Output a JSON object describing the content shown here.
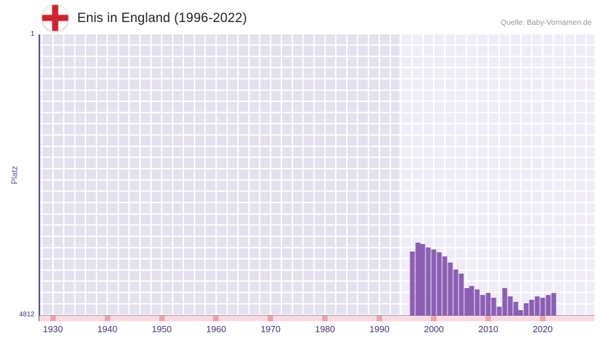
{
  "header": {
    "title": "Enis in England (1996-2022)",
    "source": "Quelle: Baby-Vornamen.de",
    "flag": "england-flag-icon"
  },
  "chart_data": {
    "type": "bar",
    "title": "Enis in England (1996-2022)",
    "xlabel": "",
    "ylabel": "Platz",
    "y_axis": {
      "top_label": "1",
      "bottom_label": "4812",
      "min": 1,
      "max": 4812,
      "inverted": true
    },
    "x_range": [
      1927.5,
      2029.5
    ],
    "x_ticks": [
      1930,
      1940,
      1950,
      1960,
      1970,
      1980,
      1990,
      2000,
      2010,
      2020
    ],
    "highlight_range": [
      1993.5,
      2029.5
    ],
    "grid": true,
    "legend": "none",
    "years": [
      1996,
      1997,
      1998,
      1999,
      2000,
      2001,
      2002,
      2003,
      2004,
      2005,
      2006,
      2007,
      2008,
      2009,
      2010,
      2011,
      2012,
      2013,
      2014,
      2015,
      2016,
      2017,
      2018,
      2019,
      2020,
      2021,
      2022
    ],
    "values": [
      3720,
      3560,
      3590,
      3640,
      3680,
      3730,
      3800,
      3900,
      4020,
      4090,
      4340,
      4300,
      4360,
      4460,
      4420,
      4500,
      4660,
      4340,
      4480,
      4580,
      4720,
      4600,
      4540,
      4480,
      4500,
      4460,
      4420
    ],
    "colors": {
      "bar": "#8c5fb5",
      "plot_bg": "#e4e0ee",
      "highlight_bg": "#efecf7",
      "grid_line": "#ffffff",
      "axis": "#55449b",
      "tick_text": "#43307a",
      "ylabel_text": "#6b4fa5",
      "axis_strip": "#f9dade",
      "strip_mark": "#eda3aa",
      "flag_red": "#d0232e"
    }
  }
}
